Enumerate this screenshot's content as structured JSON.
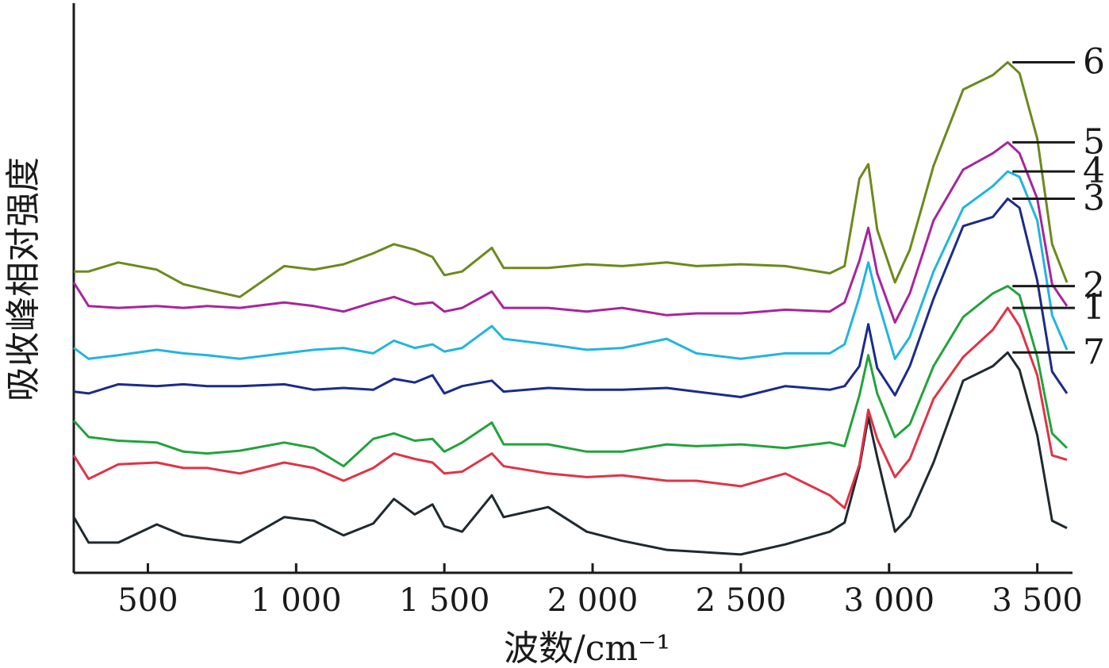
{
  "chart_data": {
    "type": "line",
    "title": "",
    "xlabel": "波数/cm⁻¹",
    "ylabel": "吸收峰相对强度",
    "xlim": [
      250,
      3600
    ],
    "ylim": [
      0,
      6
    ],
    "x_reversed": false,
    "grid": false,
    "legend": "curve numbers at right end",
    "x_ticks": [
      {
        "value": 500,
        "label": "500"
      },
      {
        "value": 1000,
        "label": "1 000"
      },
      {
        "value": 1500,
        "label": "1 500"
      },
      {
        "value": 2000,
        "label": "2 000"
      },
      {
        "value": 2500,
        "label": "2 500"
      },
      {
        "value": 3000,
        "label": "3 000"
      },
      {
        "value": 3500,
        "label": "3 500"
      }
    ],
    "series": [
      {
        "name": "7",
        "color": "#1f2a30",
        "points": [
          [
            250,
            0.42
          ],
          [
            300,
            0.14
          ],
          [
            400,
            0.14
          ],
          [
            530,
            0.34
          ],
          [
            620,
            0.22
          ],
          [
            700,
            0.18
          ],
          [
            810,
            0.14
          ],
          [
            960,
            0.42
          ],
          [
            1060,
            0.38
          ],
          [
            1160,
            0.22
          ],
          [
            1260,
            0.35
          ],
          [
            1330,
            0.62
          ],
          [
            1400,
            0.45
          ],
          [
            1460,
            0.56
          ],
          [
            1500,
            0.32
          ],
          [
            1560,
            0.26
          ],
          [
            1660,
            0.66
          ],
          [
            1700,
            0.42
          ],
          [
            1850,
            0.53
          ],
          [
            1980,
            0.26
          ],
          [
            2100,
            0.16
          ],
          [
            2250,
            0.06
          ],
          [
            2350,
            0.04
          ],
          [
            2500,
            0.01
          ],
          [
            2650,
            0.12
          ],
          [
            2800,
            0.26
          ],
          [
            2850,
            0.36
          ],
          [
            2900,
            0.97
          ],
          [
            2930,
            1.52
          ],
          [
            2960,
            1.08
          ],
          [
            3020,
            0.26
          ],
          [
            3070,
            0.43
          ],
          [
            3150,
            1.02
          ],
          [
            3250,
            1.92
          ],
          [
            3350,
            2.08
          ],
          [
            3400,
            2.23
          ],
          [
            3440,
            2.04
          ],
          [
            3500,
            1.32
          ],
          [
            3550,
            0.38
          ],
          [
            3600,
            0.3
          ]
        ]
      },
      {
        "name": "1",
        "color": "#e03346",
        "points": [
          [
            250,
            1.1
          ],
          [
            300,
            0.84
          ],
          [
            400,
            1.0
          ],
          [
            530,
            1.02
          ],
          [
            620,
            0.96
          ],
          [
            700,
            0.96
          ],
          [
            810,
            0.9
          ],
          [
            960,
            1.02
          ],
          [
            1060,
            0.96
          ],
          [
            1160,
            0.82
          ],
          [
            1260,
            0.96
          ],
          [
            1330,
            1.12
          ],
          [
            1400,
            1.06
          ],
          [
            1460,
            1.02
          ],
          [
            1500,
            0.9
          ],
          [
            1560,
            0.92
          ],
          [
            1660,
            1.12
          ],
          [
            1700,
            0.98
          ],
          [
            1850,
            0.9
          ],
          [
            1980,
            0.86
          ],
          [
            2100,
            0.88
          ],
          [
            2250,
            0.82
          ],
          [
            2350,
            0.82
          ],
          [
            2500,
            0.76
          ],
          [
            2650,
            0.9
          ],
          [
            2800,
            0.66
          ],
          [
            2850,
            0.52
          ],
          [
            2900,
            1.0
          ],
          [
            2930,
            1.6
          ],
          [
            2960,
            1.28
          ],
          [
            3020,
            0.86
          ],
          [
            3070,
            1.06
          ],
          [
            3150,
            1.72
          ],
          [
            3250,
            2.18
          ],
          [
            3350,
            2.48
          ],
          [
            3400,
            2.72
          ],
          [
            3440,
            2.52
          ],
          [
            3500,
            1.98
          ],
          [
            3550,
            1.1
          ],
          [
            3600,
            1.05
          ]
        ]
      },
      {
        "name": "2",
        "color": "#22a33b",
        "points": [
          [
            250,
            1.48
          ],
          [
            300,
            1.3
          ],
          [
            400,
            1.26
          ],
          [
            530,
            1.24
          ],
          [
            620,
            1.14
          ],
          [
            700,
            1.12
          ],
          [
            810,
            1.15
          ],
          [
            960,
            1.24
          ],
          [
            1060,
            1.18
          ],
          [
            1160,
            0.98
          ],
          [
            1260,
            1.28
          ],
          [
            1330,
            1.34
          ],
          [
            1400,
            1.26
          ],
          [
            1460,
            1.28
          ],
          [
            1500,
            1.14
          ],
          [
            1560,
            1.24
          ],
          [
            1660,
            1.46
          ],
          [
            1700,
            1.22
          ],
          [
            1850,
            1.22
          ],
          [
            1980,
            1.14
          ],
          [
            2100,
            1.14
          ],
          [
            2250,
            1.22
          ],
          [
            2350,
            1.2
          ],
          [
            2500,
            1.22
          ],
          [
            2650,
            1.18
          ],
          [
            2800,
            1.24
          ],
          [
            2850,
            1.2
          ],
          [
            2900,
            1.76
          ],
          [
            2930,
            2.2
          ],
          [
            2960,
            1.78
          ],
          [
            3020,
            1.3
          ],
          [
            3070,
            1.44
          ],
          [
            3150,
            2.08
          ],
          [
            3250,
            2.62
          ],
          [
            3350,
            2.88
          ],
          [
            3400,
            2.96
          ],
          [
            3440,
            2.86
          ],
          [
            3500,
            2.18
          ],
          [
            3550,
            1.34
          ],
          [
            3600,
            1.18
          ]
        ]
      },
      {
        "name": "3",
        "color": "#1a2c8a",
        "points": [
          [
            250,
            1.8
          ],
          [
            300,
            1.78
          ],
          [
            400,
            1.88
          ],
          [
            530,
            1.86
          ],
          [
            620,
            1.88
          ],
          [
            700,
            1.86
          ],
          [
            810,
            1.86
          ],
          [
            960,
            1.88
          ],
          [
            1060,
            1.82
          ],
          [
            1160,
            1.84
          ],
          [
            1260,
            1.82
          ],
          [
            1330,
            1.94
          ],
          [
            1400,
            1.9
          ],
          [
            1460,
            1.98
          ],
          [
            1500,
            1.78
          ],
          [
            1560,
            1.86
          ],
          [
            1660,
            1.92
          ],
          [
            1700,
            1.8
          ],
          [
            1850,
            1.84
          ],
          [
            1980,
            1.82
          ],
          [
            2100,
            1.82
          ],
          [
            2250,
            1.84
          ],
          [
            2350,
            1.8
          ],
          [
            2500,
            1.74
          ],
          [
            2650,
            1.86
          ],
          [
            2800,
            1.82
          ],
          [
            2850,
            1.86
          ],
          [
            2900,
            2.08
          ],
          [
            2930,
            2.54
          ],
          [
            2960,
            2.06
          ],
          [
            3020,
            1.76
          ],
          [
            3070,
            2.08
          ],
          [
            3150,
            2.82
          ],
          [
            3250,
            3.62
          ],
          [
            3350,
            3.72
          ],
          [
            3400,
            3.92
          ],
          [
            3440,
            3.82
          ],
          [
            3500,
            3.02
          ],
          [
            3550,
            2.02
          ],
          [
            3600,
            1.78
          ]
        ]
      },
      {
        "name": "4",
        "color": "#21b5e0",
        "points": [
          [
            250,
            2.28
          ],
          [
            300,
            2.16
          ],
          [
            400,
            2.2
          ],
          [
            530,
            2.26
          ],
          [
            620,
            2.22
          ],
          [
            700,
            2.2
          ],
          [
            810,
            2.16
          ],
          [
            960,
            2.22
          ],
          [
            1060,
            2.26
          ],
          [
            1160,
            2.28
          ],
          [
            1260,
            2.22
          ],
          [
            1330,
            2.36
          ],
          [
            1400,
            2.28
          ],
          [
            1460,
            2.32
          ],
          [
            1500,
            2.24
          ],
          [
            1560,
            2.28
          ],
          [
            1660,
            2.52
          ],
          [
            1700,
            2.38
          ],
          [
            1850,
            2.32
          ],
          [
            1980,
            2.26
          ],
          [
            2100,
            2.28
          ],
          [
            2250,
            2.38
          ],
          [
            2350,
            2.22
          ],
          [
            2500,
            2.16
          ],
          [
            2650,
            2.22
          ],
          [
            2800,
            2.22
          ],
          [
            2850,
            2.32
          ],
          [
            2900,
            2.84
          ],
          [
            2930,
            3.22
          ],
          [
            2960,
            2.82
          ],
          [
            3020,
            2.16
          ],
          [
            3070,
            2.4
          ],
          [
            3150,
            3.12
          ],
          [
            3250,
            3.82
          ],
          [
            3350,
            4.06
          ],
          [
            3400,
            4.22
          ],
          [
            3440,
            4.16
          ],
          [
            3500,
            3.68
          ],
          [
            3550,
            2.64
          ],
          [
            3600,
            2.26
          ]
        ]
      },
      {
        "name": "5",
        "color": "#a8259c",
        "points": [
          [
            250,
            3.0
          ],
          [
            300,
            2.74
          ],
          [
            400,
            2.72
          ],
          [
            530,
            2.74
          ],
          [
            620,
            2.72
          ],
          [
            700,
            2.74
          ],
          [
            810,
            2.72
          ],
          [
            960,
            2.78
          ],
          [
            1060,
            2.74
          ],
          [
            1160,
            2.68
          ],
          [
            1260,
            2.78
          ],
          [
            1330,
            2.84
          ],
          [
            1400,
            2.76
          ],
          [
            1460,
            2.78
          ],
          [
            1500,
            2.68
          ],
          [
            1560,
            2.72
          ],
          [
            1660,
            2.9
          ],
          [
            1700,
            2.72
          ],
          [
            1850,
            2.72
          ],
          [
            1980,
            2.68
          ],
          [
            2100,
            2.72
          ],
          [
            2250,
            2.64
          ],
          [
            2350,
            2.66
          ],
          [
            2500,
            2.66
          ],
          [
            2650,
            2.7
          ],
          [
            2800,
            2.68
          ],
          [
            2850,
            2.78
          ],
          [
            2900,
            3.24
          ],
          [
            2930,
            3.6
          ],
          [
            2960,
            3.1
          ],
          [
            3020,
            2.56
          ],
          [
            3070,
            2.88
          ],
          [
            3150,
            3.68
          ],
          [
            3250,
            4.24
          ],
          [
            3350,
            4.42
          ],
          [
            3400,
            4.54
          ],
          [
            3440,
            4.42
          ],
          [
            3500,
            3.92
          ],
          [
            3550,
            2.98
          ],
          [
            3600,
            2.74
          ]
        ]
      },
      {
        "name": "6",
        "color": "#6b8a1c",
        "points": [
          [
            250,
            3.12
          ],
          [
            300,
            3.12
          ],
          [
            400,
            3.22
          ],
          [
            530,
            3.14
          ],
          [
            620,
            2.98
          ],
          [
            700,
            2.92
          ],
          [
            810,
            2.84
          ],
          [
            960,
            3.18
          ],
          [
            1060,
            3.14
          ],
          [
            1160,
            3.2
          ],
          [
            1260,
            3.32
          ],
          [
            1330,
            3.42
          ],
          [
            1400,
            3.36
          ],
          [
            1460,
            3.28
          ],
          [
            1500,
            3.08
          ],
          [
            1560,
            3.12
          ],
          [
            1660,
            3.38
          ],
          [
            1700,
            3.16
          ],
          [
            1850,
            3.16
          ],
          [
            1980,
            3.2
          ],
          [
            2100,
            3.18
          ],
          [
            2250,
            3.22
          ],
          [
            2350,
            3.18
          ],
          [
            2500,
            3.2
          ],
          [
            2650,
            3.18
          ],
          [
            2800,
            3.1
          ],
          [
            2850,
            3.18
          ],
          [
            2900,
            4.14
          ],
          [
            2930,
            4.3
          ],
          [
            2960,
            3.58
          ],
          [
            3020,
            3.0
          ],
          [
            3070,
            3.36
          ],
          [
            3150,
            4.28
          ],
          [
            3250,
            5.12
          ],
          [
            3350,
            5.28
          ],
          [
            3400,
            5.42
          ],
          [
            3440,
            5.3
          ],
          [
            3500,
            4.58
          ],
          [
            3550,
            3.42
          ],
          [
            3600,
            3.0
          ]
        ]
      }
    ]
  }
}
